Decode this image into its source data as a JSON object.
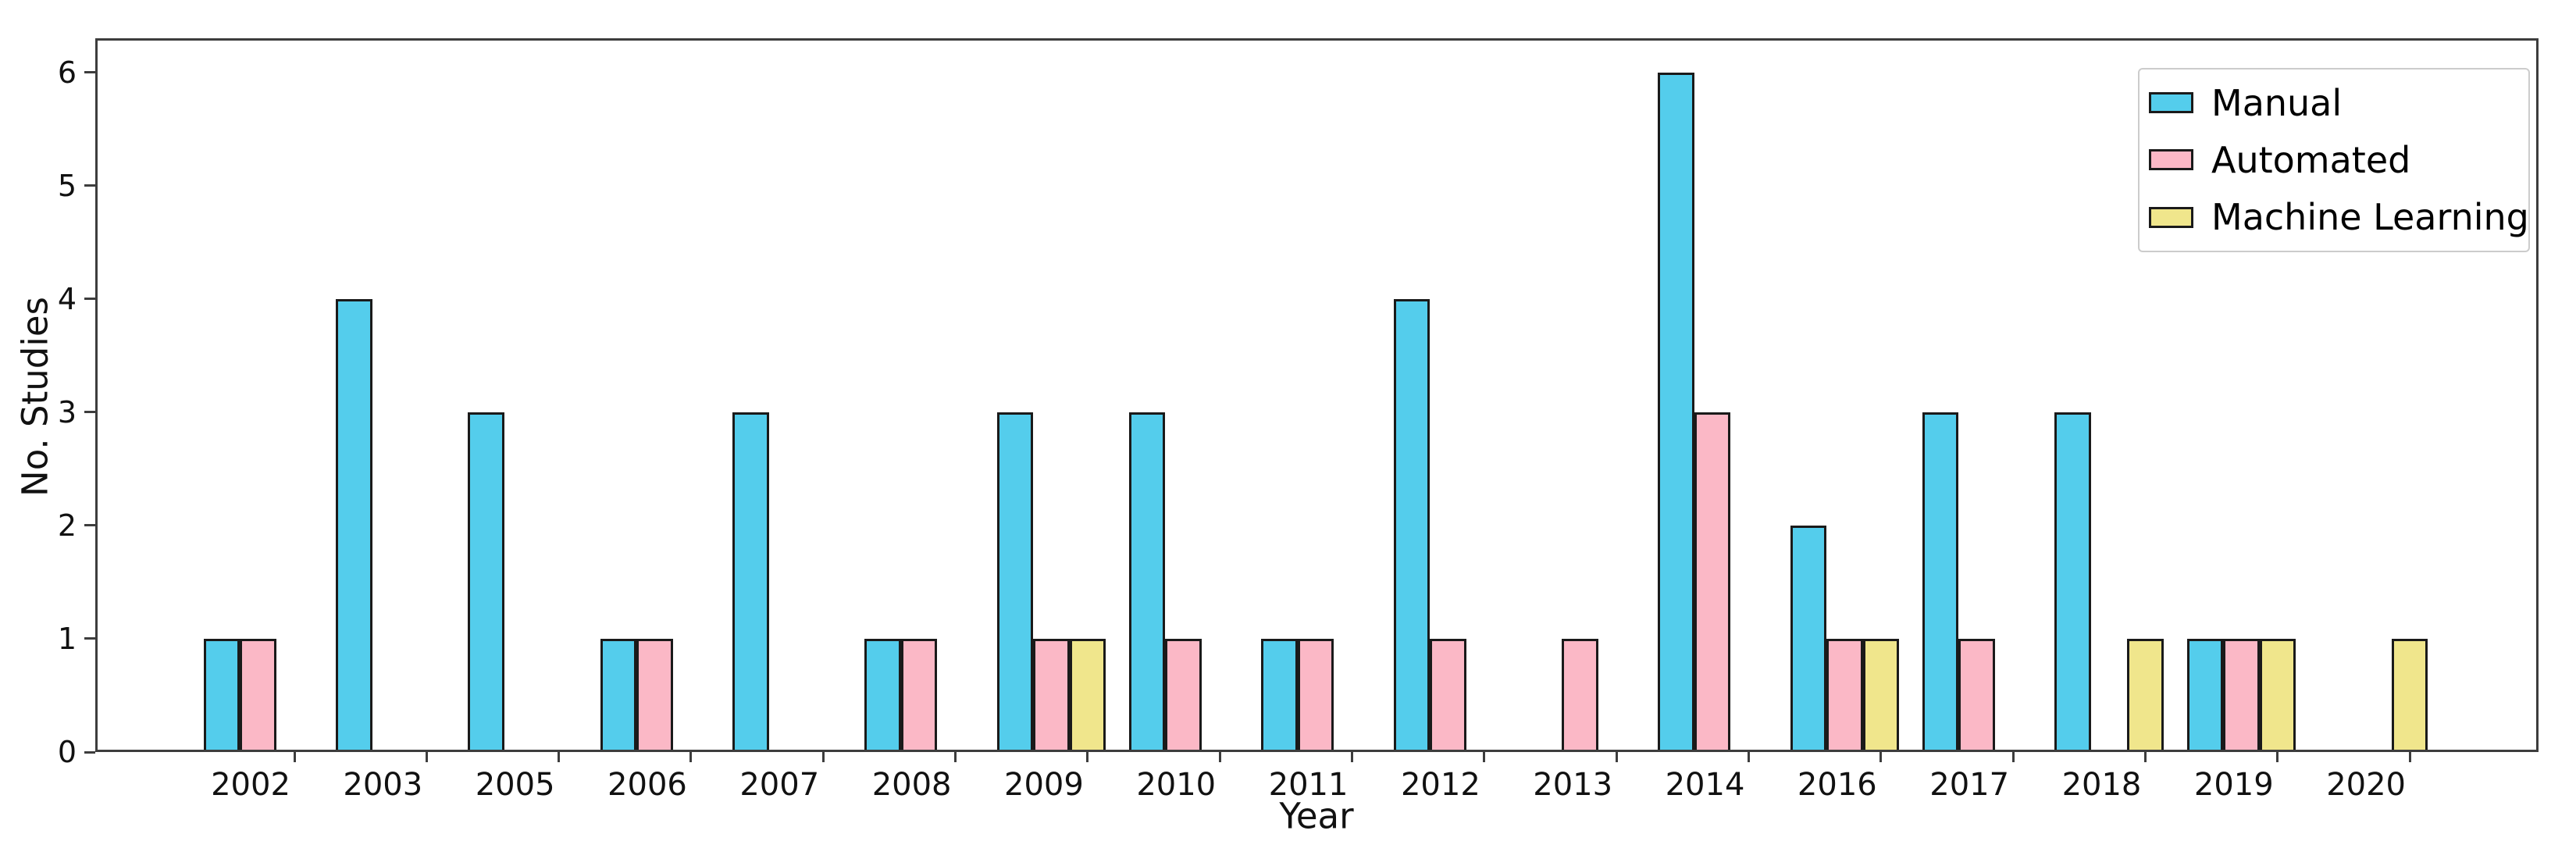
{
  "chart_data": {
    "type": "bar",
    "title": "",
    "xlabel": "Year",
    "ylabel": "No. Studies",
    "categories": [
      "2002",
      "2003",
      "2005",
      "2006",
      "2007",
      "2008",
      "2009",
      "2010",
      "2011",
      "2012",
      "2013",
      "2014",
      "2016",
      "2017",
      "2018",
      "2019",
      "2020"
    ],
    "series": [
      {
        "name": "Manual",
        "color": "#54cdec",
        "values": [
          1,
          4,
          3,
          1,
          3,
          1,
          3,
          3,
          1,
          4,
          0,
          6,
          2,
          3,
          3,
          1,
          0
        ]
      },
      {
        "name": "Automated",
        "color": "#fbb8c6",
        "values": [
          1,
          0,
          0,
          1,
          0,
          1,
          1,
          1,
          1,
          1,
          1,
          3,
          1,
          1,
          0,
          1,
          0
        ]
      },
      {
        "name": "Machine Learning",
        "color": "#f0e68c",
        "values": [
          0,
          0,
          0,
          0,
          0,
          0,
          1,
          0,
          0,
          0,
          0,
          0,
          1,
          0,
          1,
          1,
          1
        ]
      }
    ],
    "yticks": [
      0,
      1,
      2,
      3,
      4,
      5,
      6
    ],
    "ylim": [
      0,
      6.3
    ],
    "grid": false,
    "legend_position": "upper right",
    "bar_edge_color": "#1a1a1a"
  }
}
